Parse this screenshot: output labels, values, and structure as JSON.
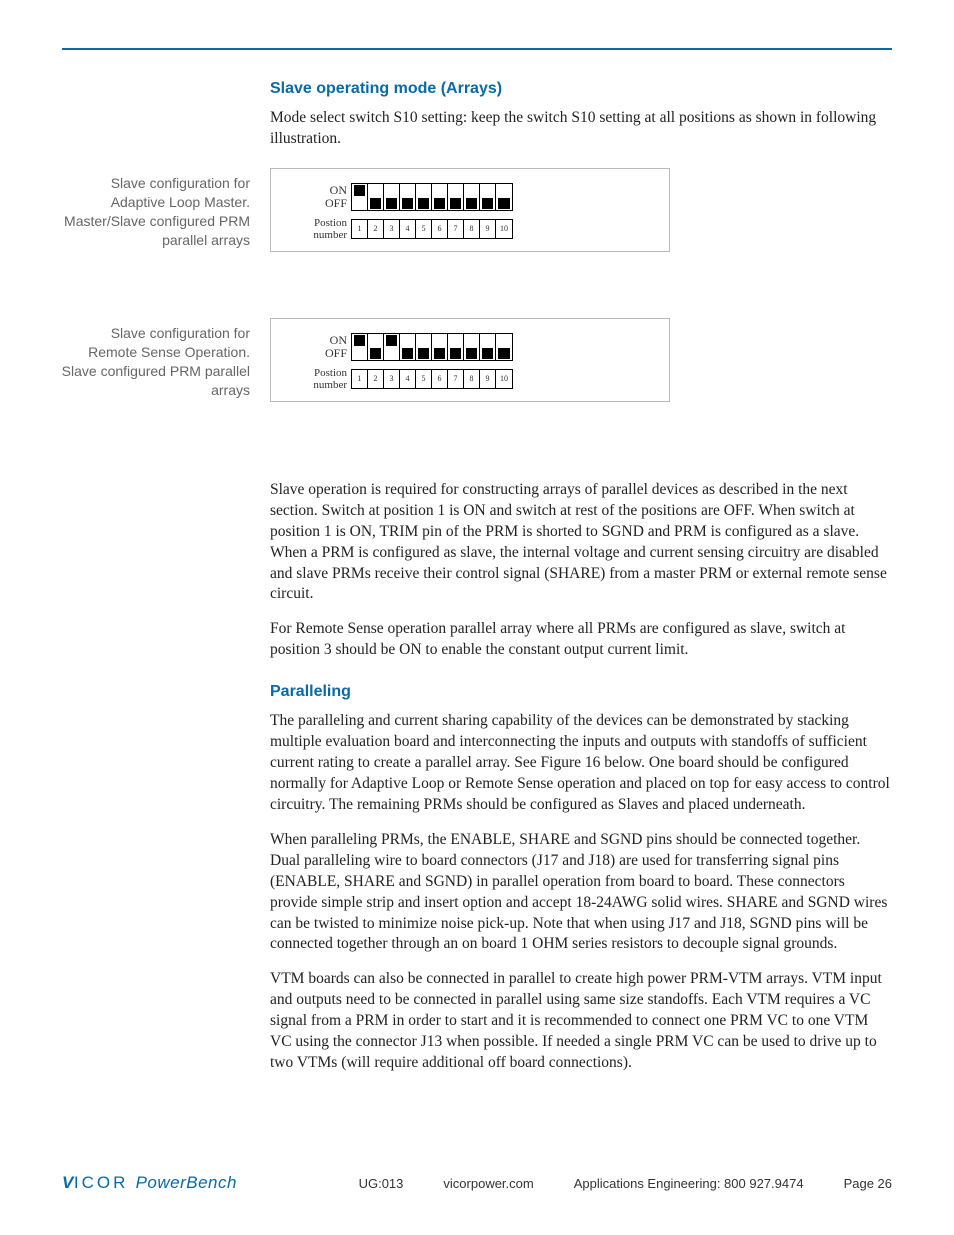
{
  "colors": {
    "rule": "#0a6aa6",
    "heading": "#0a6aa6",
    "logo": "#0a6aa6",
    "body": "#222222",
    "caption": "#666666"
  },
  "section1": {
    "heading": "Slave operating mode (Arrays)",
    "intro": "Mode select switch S10 setting: keep the switch S10 setting at all positions as shown in following illustration."
  },
  "switch": {
    "on_label": "ON",
    "off_label": "OFF",
    "position_label_1": "Postion",
    "position_label_2": "number",
    "positions": [
      "1",
      "2",
      "3",
      "4",
      "5",
      "6",
      "7",
      "8",
      "9",
      "10"
    ]
  },
  "figure1": {
    "caption": "Slave configuration for Adaptive Loop Master. Master/Slave configured PRM parallel arrays",
    "states": [
      "on",
      "off",
      "off",
      "off",
      "off",
      "off",
      "off",
      "off",
      "off",
      "off"
    ]
  },
  "figure2": {
    "caption": "Slave configuration for Remote Sense Operation. Slave configured PRM parallel arrays",
    "states": [
      "on",
      "off",
      "on",
      "off",
      "off",
      "off",
      "off",
      "off",
      "off",
      "off"
    ]
  },
  "para_after_figs_1": "Slave operation is required for constructing arrays of parallel devices as described in the next section. Switch at position 1 is ON and switch at rest of the positions are OFF. When switch at position 1 is ON, TRIM pin of the PRM is shorted to SGND and PRM is configured as a slave. When a PRM is configured as slave, the internal voltage and current sensing circuitry are disabled and slave PRMs receive their control signal (SHARE) from a master PRM or external remote sense circuit.",
  "para_after_figs_2": "For Remote Sense operation parallel array where all PRMs are configured as slave, switch at position 3 should be ON to enable the constant output current limit.",
  "section2": {
    "heading": "Paralleling",
    "p1": "The paralleling and current sharing capability of the devices can be demonstrated by stacking multiple evaluation board and interconnecting the inputs and outputs with standoffs of sufficient current rating to create a parallel array. See Figure 16 below. One board should be configured normally for Adaptive Loop or Remote Sense operation and placed on top for easy access to control circuitry.  The remaining PRMs should be configured as Slaves and placed underneath.",
    "p2": "When paralleling PRMs, the ENABLE, SHARE and SGND pins should be connected together.  Dual paralleling wire to board connectors (J17 and J18) are used for transferring signal pins (ENABLE, SHARE and SGND) in parallel operation from board to board. These connectors provide simple strip and insert option and accept 18-24AWG solid wires. SHARE and SGND wires can be twisted to minimize noise pick-up. Note that when using J17 and J18, SGND pins will be connected together through an on board 1 OHM series resistors to decouple signal grounds.",
    "p3": "VTM boards can also be connected in parallel to create high power PRM-VTM arrays. VTM input and outputs need to be connected in parallel using same size standoffs. Each VTM requires a VC signal from a PRM in order to start and it is recommended to connect one PRM VC to one VTM VC using the connector J13 when possible. If needed a single PRM VC can be used to drive up to two VTMs (will require additional off board connections)."
  },
  "footer": {
    "doc_id": "UG:013",
    "url": "vicorpower.com",
    "contact": "Applications Engineering: 800 927.9474",
    "page": "Page 26",
    "logo_brand": "VICOR",
    "logo_sub": "PowerBench"
  }
}
